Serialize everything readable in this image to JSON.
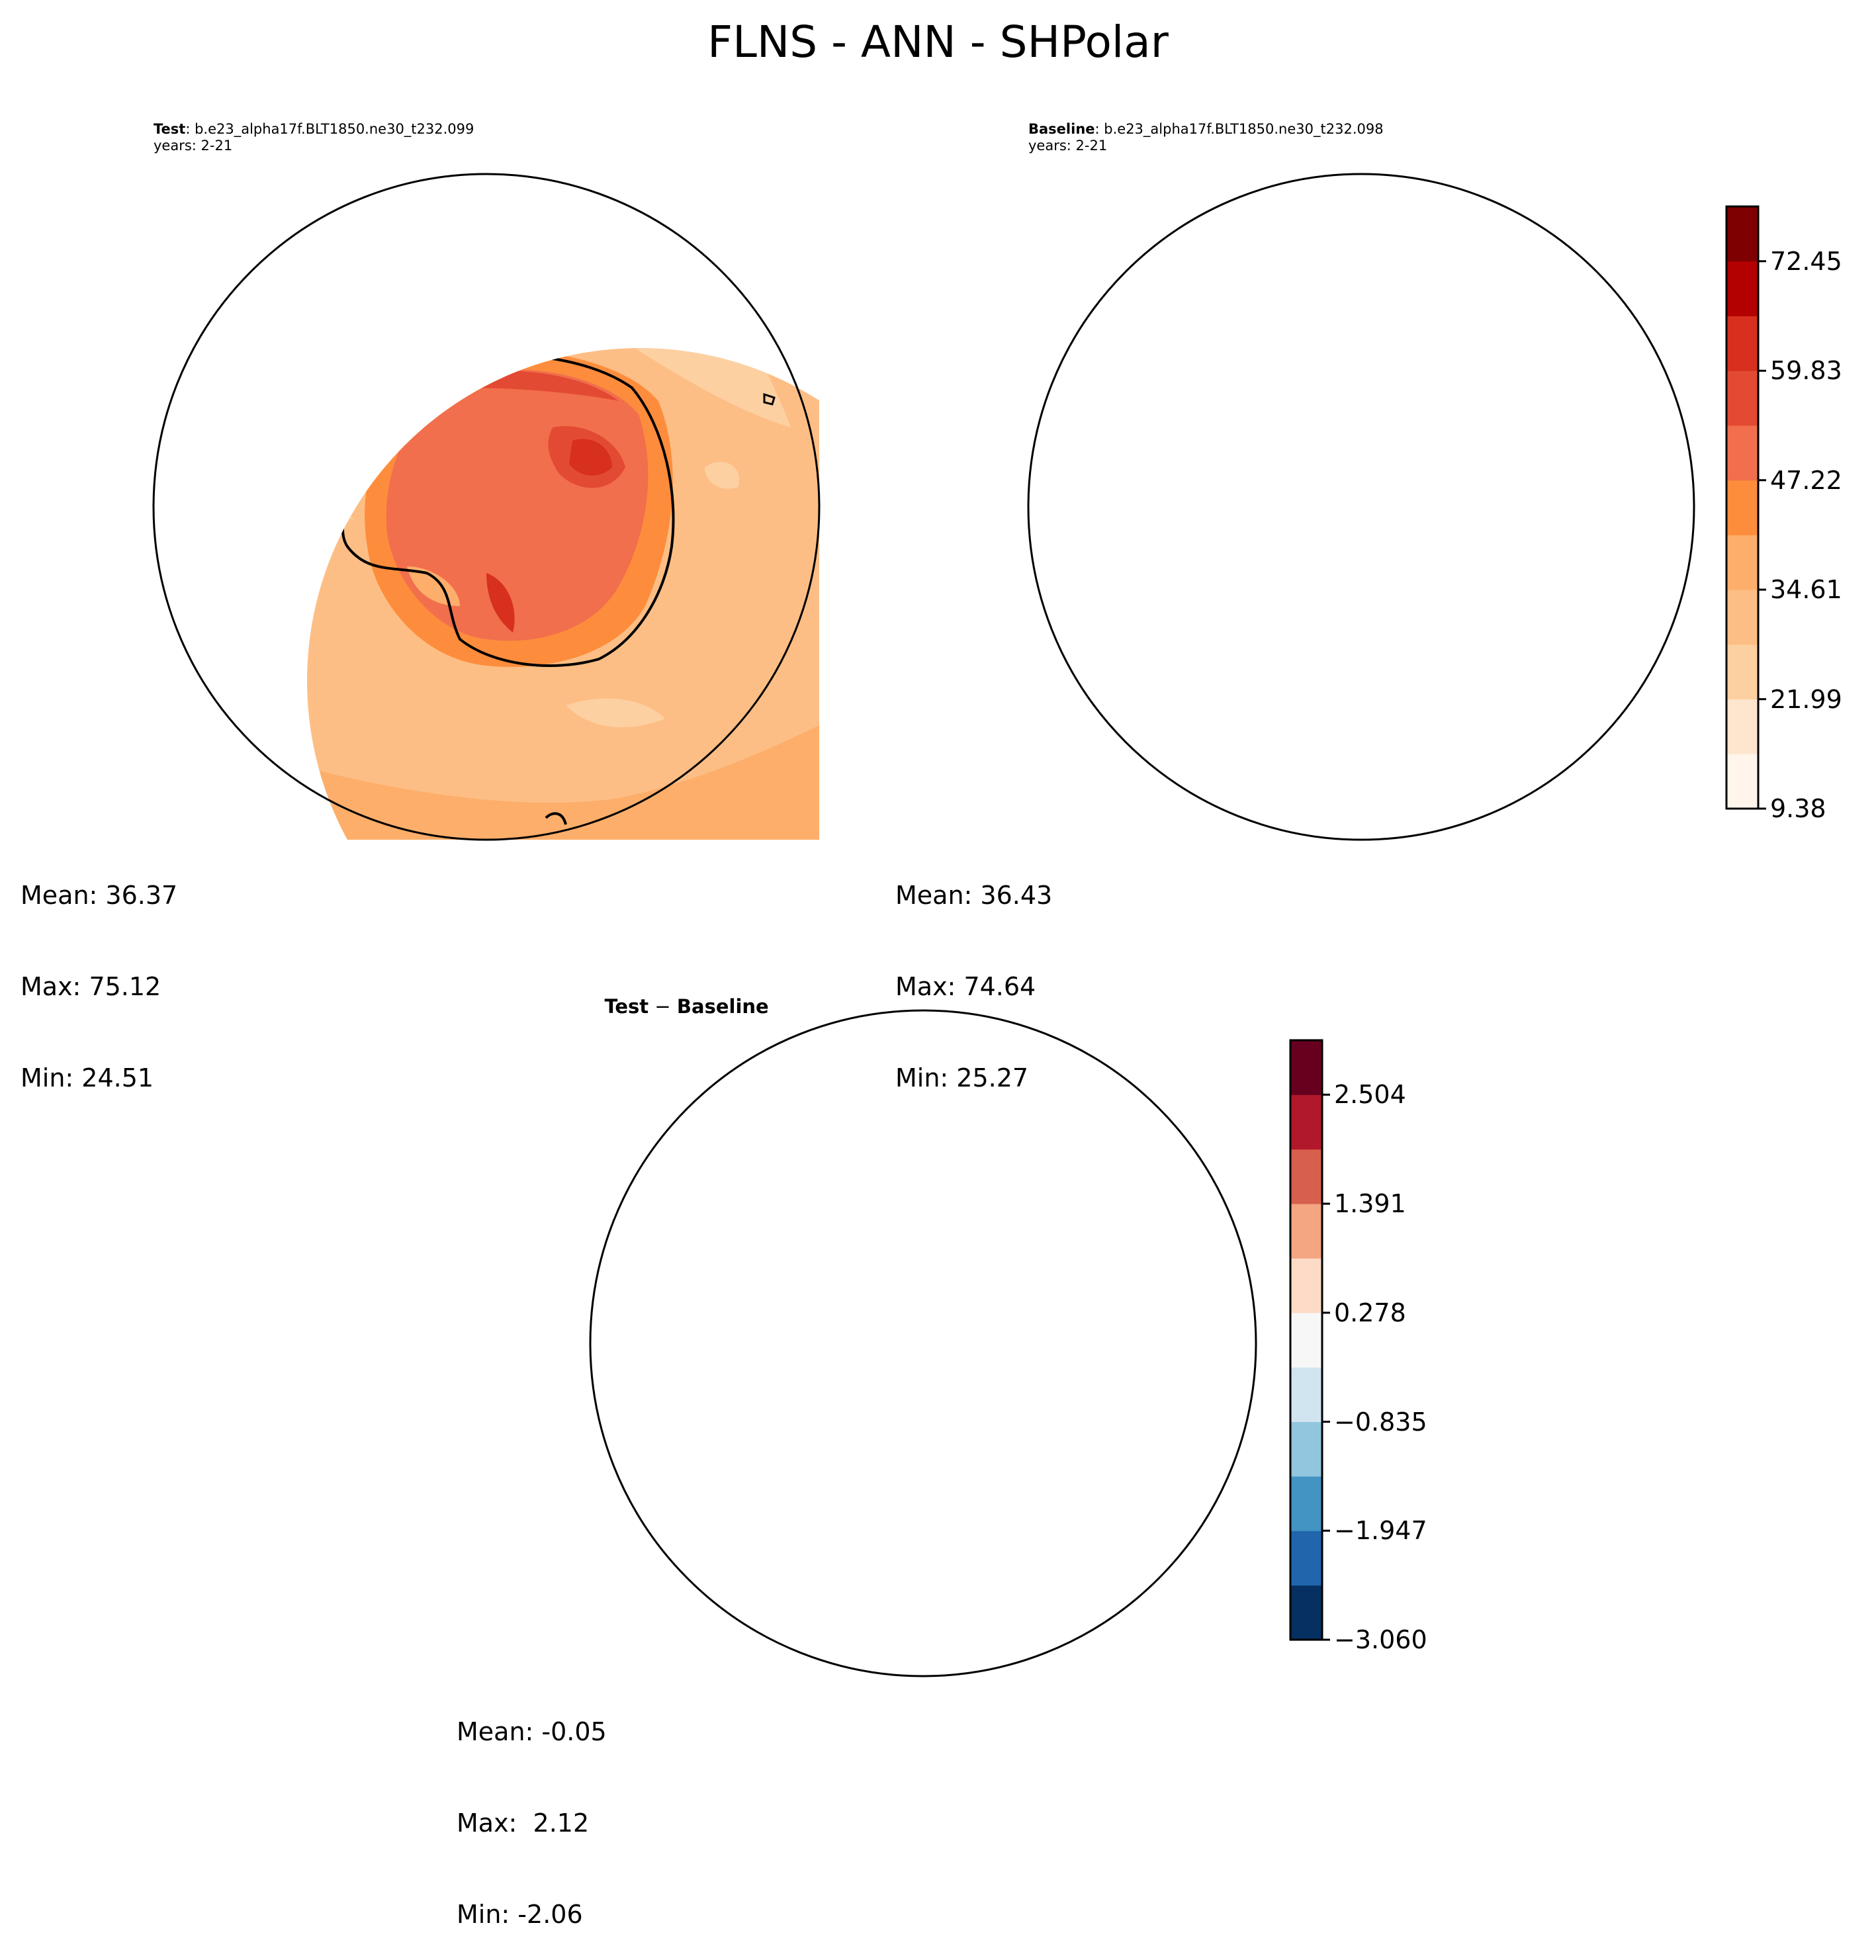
{
  "title": "FLNS - ANN - SHPolar",
  "colors": {
    "reds_scale": [
      "#fff5eb",
      "#fee6ce",
      "#fdd0a2",
      "#fdbe85",
      "#fdae6b",
      "#fd8d3c",
      "#f16f4c",
      "#e34a33",
      "#d7301f",
      "#b30000",
      "#7f0000"
    ],
    "diff_scale": [
      "#053061",
      "#2166ac",
      "#4393c3",
      "#92c5de",
      "#d1e5f0",
      "#f7f7f7",
      "#fddbc7",
      "#f4a582",
      "#d6604d",
      "#b2182b",
      "#67001f"
    ],
    "coastline": "#000000"
  },
  "panels": {
    "test": {
      "label_bold": "Test",
      "label_text": ": b.e23_alpha17f.BLT1850.ne30_t232.099",
      "years": "years: 2-21",
      "mean": "Mean: 36.37",
      "max": "Max: 75.12",
      "min": "Min: 24.51"
    },
    "baseline": {
      "label_bold": "Baseline",
      "label_text": ": b.e23_alpha17f.BLT1850.ne30_t232.098",
      "years": "years: 2-21",
      "mean": "Mean: 36.43",
      "max": "Max: 74.64",
      "min": "Min: 25.27"
    },
    "diff": {
      "label_bold": "Test",
      "label_text": " − ",
      "label_bold2": "Baseline",
      "mean": "Mean: -0.05",
      "max": "Max:  2.12",
      "min": "Min: -2.06"
    }
  },
  "chart_data": [
    {
      "type": "heatmap",
      "title": "Test : b.e23_alpha17f.BLT1850.ne30_t232.099",
      "projection": "south polar stereographic",
      "summary": {
        "mean": 36.37,
        "max": 75.12,
        "min": 24.51
      },
      "colorbar": "shared with Baseline"
    },
    {
      "type": "heatmap",
      "title": "Baseline : b.e23_alpha17f.BLT1850.ne30_t232.098",
      "projection": "south polar stereographic",
      "summary": {
        "mean": 36.43,
        "max": 74.64,
        "min": 25.27
      },
      "colorbar": {
        "min": 9.38,
        "max": 78.76,
        "levels": 11,
        "ticks": [
          9.38,
          21.99,
          34.61,
          47.22,
          59.83,
          72.45
        ],
        "tick_labels": [
          "9.38",
          "21.99",
          "34.61",
          "47.22",
          "59.83",
          "72.45"
        ]
      }
    },
    {
      "type": "heatmap",
      "title": "Test − Baseline",
      "projection": "south polar stereographic",
      "summary": {
        "mean": -0.05,
        "max": 2.12,
        "min": -2.06
      },
      "colorbar": {
        "min": -3.06,
        "max": 3.06,
        "levels": 11,
        "ticks": [
          -3.06,
          -1.947,
          -0.835,
          0.278,
          1.391,
          2.504
        ],
        "tick_labels": [
          "−3.060",
          "−1.947",
          "−0.835",
          "0.278",
          "1.391",
          "2.504"
        ]
      }
    }
  ]
}
